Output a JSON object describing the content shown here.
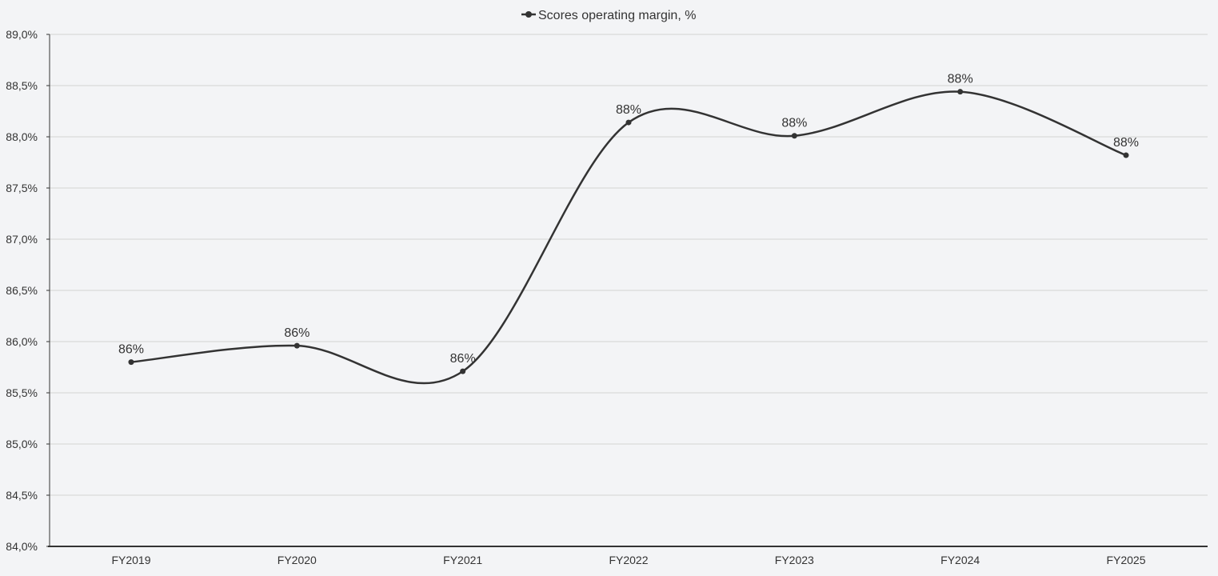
{
  "chart_data": {
    "type": "line",
    "title": "",
    "xlabel": "",
    "ylabel": "",
    "categories": [
      "FY2019",
      "FY2020",
      "FY2021",
      "FY2022",
      "FY2023",
      "FY2024",
      "FY2025"
    ],
    "series": [
      {
        "name": "Scores operating margin, %",
        "values": [
          85.8,
          85.96,
          85.71,
          88.14,
          88.01,
          88.44,
          87.82
        ],
        "data_labels": [
          "86%",
          "86%",
          "86%",
          "88%",
          "88%",
          "88%",
          "88%"
        ],
        "color": "#333333"
      }
    ],
    "ylim": [
      84.0,
      89.0
    ],
    "yticks": [
      84.0,
      84.5,
      85.0,
      85.5,
      86.0,
      86.5,
      87.0,
      87.5,
      88.0,
      88.5,
      89.0
    ],
    "ytick_labels": [
      "84,0%",
      "84,5%",
      "85,0%",
      "85,5%",
      "86,0%",
      "86,5%",
      "87,0%",
      "87,5%",
      "88,0%",
      "88,5%",
      "89,0%"
    ],
    "grid": true,
    "smooth": true,
    "legend_position": "top-center"
  },
  "colors": {
    "background": "#f3f4f6",
    "grid": "#d3d3d3",
    "axis": "#333333",
    "line": "#333333"
  }
}
